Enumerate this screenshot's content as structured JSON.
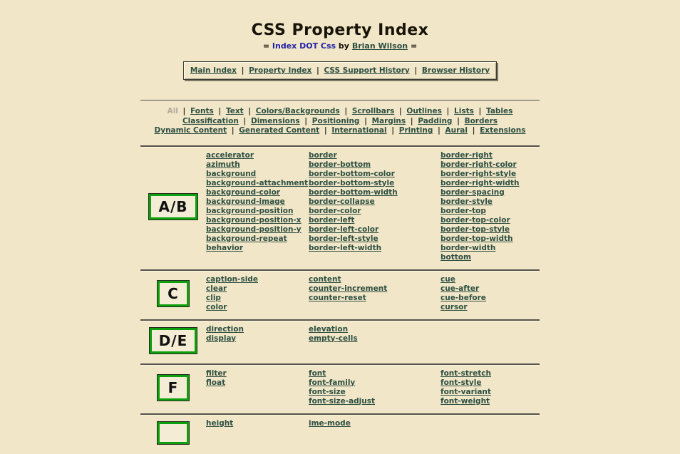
{
  "header": {
    "title": "CSS Property Index",
    "subtitle_prefix": "=",
    "site_link": "Index DOT Css",
    "by_text": "by",
    "author_link": "Brian Wilson",
    "subtitle_suffix": "="
  },
  "nav": {
    "separator": "|",
    "items": [
      "Main Index",
      "Property Index",
      "CSS Support History",
      "Browser History"
    ]
  },
  "categories": {
    "all_label": "All",
    "separator": "|",
    "lines": [
      [
        "Fonts",
        "Text",
        "Colors/Backgrounds",
        "Scrollbars",
        "Outlines",
        "Lists",
        "Tables"
      ],
      [
        "Classification",
        "Dimensions",
        "Positioning",
        "Margins",
        "Padding",
        "Borders"
      ],
      [
        "Dynamic Content",
        "Generated Content",
        "International",
        "Printing",
        "Aural",
        "Extensions"
      ]
    ]
  },
  "sections": [
    {
      "letter": "A/B",
      "columns": [
        [
          "accelerator",
          "azimuth",
          "background",
          "background-attachment",
          "background-color",
          "background-image",
          "background-position",
          "background-position-x",
          "background-position-y",
          "background-repeat",
          "behavior"
        ],
        [
          "border",
          "border-bottom",
          "border-bottom-color",
          "border-bottom-style",
          "border-bottom-width",
          "border-collapse",
          "border-color",
          "border-left",
          "border-left-color",
          "border-left-style",
          "border-left-width"
        ],
        [
          "border-right",
          "border-right-color",
          "border-right-style",
          "border-right-width",
          "border-spacing",
          "border-style",
          "border-top",
          "border-top-color",
          "border-top-style",
          "border-top-width",
          "border-width",
          "bottom"
        ]
      ]
    },
    {
      "letter": "C",
      "columns": [
        [
          "caption-side",
          "clear",
          "clip",
          "color"
        ],
        [
          "content",
          "counter-increment",
          "counter-reset"
        ],
        [
          "cue",
          "cue-after",
          "cue-before",
          "cursor"
        ]
      ]
    },
    {
      "letter": "D/E",
      "columns": [
        [
          "direction",
          "display"
        ],
        [
          "elevation",
          "empty-cells"
        ],
        []
      ]
    },
    {
      "letter": "F",
      "columns": [
        [
          "filter",
          "float"
        ],
        [
          "font",
          "font-family",
          "font-size",
          "font-size-adjust"
        ],
        [
          "font-stretch",
          "font-style",
          "font-variant",
          "font-weight"
        ]
      ]
    },
    {
      "letter": "",
      "columns": [
        [
          "height"
        ],
        [
          "ime-mode"
        ],
        []
      ]
    }
  ],
  "colors": {
    "background": "#f1e6c8",
    "link": "#2d4f41",
    "site_link": "#2323a8",
    "all_gray": "#b3ac99",
    "letter_box_border": "#0ca10c",
    "text": "#181408"
  }
}
